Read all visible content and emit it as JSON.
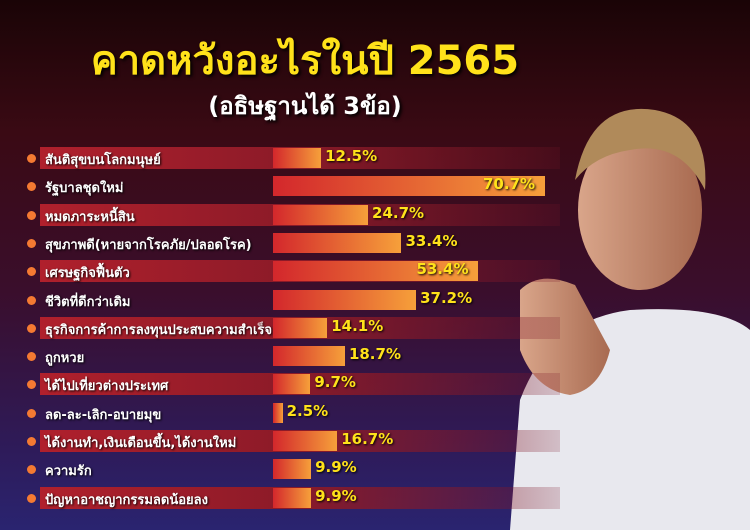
{
  "chart_data": {
    "type": "bar",
    "orientation": "horizontal",
    "title": "คาดหวังอะไรในปี 2565",
    "subtitle": "(อธิษฐานได้ 3ข้อ)",
    "categories": [
      "สันติสุขบนโลกมนุษย์",
      "รัฐบาลชุดใหม่",
      "หมดภาระหนี้สิน",
      "สุขภาพดี(หายจากโรคภัย/ปลอดโรค)",
      "เศรษฐกิจฟื้นตัว",
      "ชีวิตที่ดีกว่าเดิม",
      "ธุรกิจการค้าการลงทุนประสบความสำเร็จ",
      "ถูกหวย",
      "ได้ไปเที่ยวต่างประเทศ",
      "ลด-ละ-เลิก-อบายมุข",
      "ได้งานทำ,เงินเดือนขึ้น,ได้งานใหม่",
      "ความรัก",
      "ปัญหาอาชญากรรมลดน้อยลง"
    ],
    "values": [
      12.5,
      70.7,
      24.7,
      33.4,
      53.4,
      37.2,
      14.1,
      18.7,
      9.7,
      2.5,
      16.7,
      9.9,
      9.9
    ],
    "value_labels": [
      "12.5%",
      "70.7%",
      "24.7%",
      "33.4%",
      "53.4%",
      "37.2%",
      "14.1%",
      "18.7%",
      "9.7%",
      "2.5%",
      "16.7%",
      "9.9%",
      "9.9%"
    ],
    "unit": "%",
    "colors": {
      "bar_start": "#d3272c",
      "bar_end": "#f6a03a",
      "value_text": "#ffe21a",
      "title": "#ffe21a"
    }
  },
  "image": "praying-man-photo"
}
